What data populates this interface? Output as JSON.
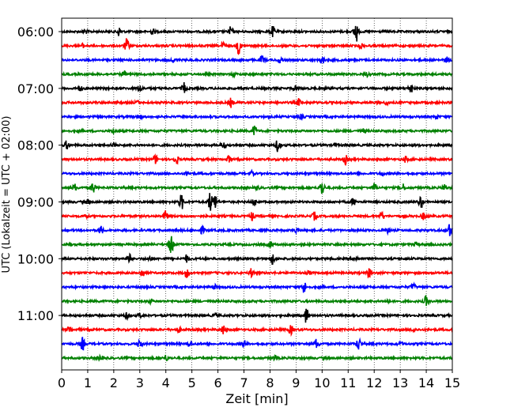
{
  "chart_data": {
    "type": "line",
    "title": "",
    "xlabel": "Zeit  [min]",
    "ylabel": "UTC (Lokalzeit = UTC + 02:00)",
    "xlim": [
      0,
      15
    ],
    "x_ticks": [
      "0",
      "1",
      "2",
      "3",
      "4",
      "5",
      "6",
      "7",
      "8",
      "9",
      "10",
      "11",
      "12",
      "13",
      "14",
      "15"
    ],
    "y_ticks": [
      "06:00",
      "07:00",
      "08:00",
      "09:00",
      "10:00",
      "11:00"
    ],
    "ylim": [
      "06:00",
      "11:45"
    ],
    "trace_interval_min": 15,
    "grid": "vertical dotted at each minute",
    "legend": "none",
    "colors_cycle": [
      "#000000",
      "#ff0000",
      "#0000ff",
      "#008000"
    ],
    "series": [
      {
        "start": "06:00",
        "color": "#000000",
        "events": [
          [
            2.2,
            0.25
          ],
          [
            6.5,
            0.3
          ],
          [
            8.1,
            0.3
          ],
          [
            11.3,
            0.7
          ],
          [
            3.5,
            0.15
          ],
          [
            0.9,
            0.12
          ]
        ]
      },
      {
        "start": "06:15",
        "color": "#ff0000",
        "events": [
          [
            2.5,
            0.4
          ],
          [
            6.8,
            0.45
          ],
          [
            6.2,
            0.2
          ],
          [
            0.8,
            0.1
          ],
          [
            11.5,
            0.15
          ]
        ]
      },
      {
        "start": "06:30",
        "color": "#0000ff",
        "events": [
          [
            7.7,
            0.25
          ],
          [
            10.0,
            0.22
          ],
          [
            8.4,
            0.2
          ],
          [
            14.8,
            0.15
          ],
          [
            4.3,
            0.1
          ]
        ]
      },
      {
        "start": "06:45",
        "color": "#008000",
        "events": [
          [
            2.4,
            0.15
          ],
          [
            11.7,
            0.12
          ],
          [
            6.6,
            0.1
          ]
        ]
      },
      {
        "start": "07:00",
        "color": "#000000",
        "events": [
          [
            4.7,
            0.3
          ],
          [
            13.4,
            0.3
          ],
          [
            0.7,
            0.15
          ],
          [
            3.0,
            0.2
          ],
          [
            9.0,
            0.15
          ]
        ]
      },
      {
        "start": "07:15",
        "color": "#ff0000",
        "events": [
          [
            6.5,
            0.25
          ],
          [
            9.1,
            0.2
          ],
          [
            2.9,
            0.1
          ],
          [
            12.5,
            0.12
          ]
        ]
      },
      {
        "start": "07:30",
        "color": "#0000ff",
        "events": [
          [
            3.0,
            0.12
          ],
          [
            9.2,
            0.12
          ],
          [
            14.4,
            0.1
          ]
        ]
      },
      {
        "start": "07:45",
        "color": "#008000",
        "events": [
          [
            7.4,
            0.3
          ],
          [
            2.0,
            0.12
          ],
          [
            11.6,
            0.1
          ]
        ]
      },
      {
        "start": "08:00",
        "color": "#000000",
        "events": [
          [
            8.3,
            0.35
          ],
          [
            0.2,
            0.25
          ],
          [
            6.2,
            0.2
          ],
          [
            2.0,
            0.15
          ],
          [
            10.5,
            0.1
          ]
        ]
      },
      {
        "start": "08:15",
        "color": "#ff0000",
        "events": [
          [
            3.6,
            0.25
          ],
          [
            4.4,
            0.25
          ],
          [
            6.4,
            0.2
          ],
          [
            10.9,
            0.25
          ],
          [
            13.2,
            0.15
          ]
        ]
      },
      {
        "start": "08:30",
        "color": "#0000ff",
        "events": [
          [
            4.8,
            0.12
          ],
          [
            7.3,
            0.12
          ],
          [
            12.3,
            0.1
          ]
        ]
      },
      {
        "start": "08:45",
        "color": "#008000",
        "events": [
          [
            1.2,
            0.35
          ],
          [
            0.5,
            0.2
          ],
          [
            10.0,
            0.45
          ],
          [
            12.0,
            0.25
          ],
          [
            13.1,
            0.2
          ],
          [
            14.7,
            0.2
          ],
          [
            7.5,
            0.1
          ]
        ]
      },
      {
        "start": "09:00",
        "color": "#000000",
        "events": [
          [
            4.6,
            0.45
          ],
          [
            5.7,
            0.55
          ],
          [
            5.9,
            0.4
          ],
          [
            7.4,
            0.2
          ],
          [
            11.2,
            0.2
          ],
          [
            13.8,
            0.35
          ],
          [
            1.0,
            0.12
          ]
        ]
      },
      {
        "start": "09:15",
        "color": "#ff0000",
        "events": [
          [
            4.0,
            0.3
          ],
          [
            7.3,
            0.25
          ],
          [
            9.7,
            0.22
          ],
          [
            12.3,
            0.2
          ],
          [
            13.9,
            0.2
          ],
          [
            0.9,
            0.12
          ]
        ]
      },
      {
        "start": "09:30",
        "color": "#0000ff",
        "events": [
          [
            1.5,
            0.25
          ],
          [
            5.4,
            0.2
          ],
          [
            9.0,
            0.15
          ],
          [
            12.5,
            0.15
          ],
          [
            14.9,
            0.35
          ]
        ]
      },
      {
        "start": "09:45",
        "color": "#008000",
        "events": [
          [
            4.2,
            0.6
          ],
          [
            8.0,
            0.2
          ],
          [
            13.6,
            0.12
          ]
        ]
      },
      {
        "start": "10:00",
        "color": "#000000",
        "events": [
          [
            2.6,
            0.25
          ],
          [
            4.8,
            0.2
          ],
          [
            8.1,
            0.3
          ],
          [
            3.4,
            0.15
          ],
          [
            11.3,
            0.1
          ]
        ]
      },
      {
        "start": "10:15",
        "color": "#ff0000",
        "events": [
          [
            3.1,
            0.2
          ],
          [
            4.8,
            0.25
          ],
          [
            7.3,
            0.28
          ],
          [
            11.8,
            0.25
          ],
          [
            9.5,
            0.1
          ]
        ]
      },
      {
        "start": "10:30",
        "color": "#0000ff",
        "events": [
          [
            9.3,
            0.35
          ],
          [
            13.5,
            0.2
          ],
          [
            5.9,
            0.1
          ]
        ]
      },
      {
        "start": "10:45",
        "color": "#008000",
        "events": [
          [
            14.0,
            0.3
          ],
          [
            12.5,
            0.12
          ],
          [
            3.4,
            0.1
          ]
        ]
      },
      {
        "start": "11:00",
        "color": "#000000",
        "events": [
          [
            9.4,
            0.45
          ],
          [
            2.5,
            0.15
          ],
          [
            3.0,
            0.1
          ],
          [
            5.9,
            0.12
          ]
        ]
      },
      {
        "start": "11:15",
        "color": "#ff0000",
        "events": [
          [
            0.3,
            0.2
          ],
          [
            6.2,
            0.25
          ],
          [
            8.8,
            0.25
          ],
          [
            4.5,
            0.15
          ],
          [
            13.5,
            0.12
          ]
        ]
      },
      {
        "start": "11:30",
        "color": "#0000ff",
        "events": [
          [
            0.8,
            0.35
          ],
          [
            3.0,
            0.3
          ],
          [
            4.9,
            0.15
          ],
          [
            7.0,
            0.2
          ],
          [
            9.8,
            0.3
          ],
          [
            11.4,
            0.35
          ],
          [
            13.0,
            0.12
          ]
        ]
      },
      {
        "start": "11:45",
        "color": "#008000",
        "events": [
          [
            1.5,
            0.15
          ],
          [
            4.0,
            0.15
          ],
          [
            8.2,
            0.12
          ]
        ]
      }
    ]
  }
}
